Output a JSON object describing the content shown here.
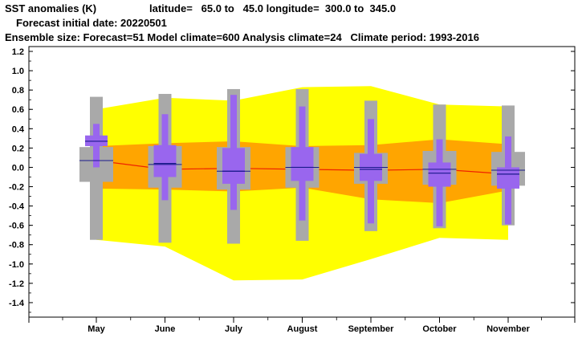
{
  "header": {
    "line1_title": "SST anomalies (K)",
    "line1_region": "latitude=   65.0 to   45.0 longitude=  300.0 to  345.0",
    "line2": "Forecast initial date: 20220501",
    "line3": "Ensemble size: Forecast=51 Model climate=600 Analysis climate=24   Climate period: 1993-2016"
  },
  "chart_data": {
    "type": "box",
    "title": "SST anomalies (K)",
    "categories": [
      "May",
      "June",
      "July",
      "August",
      "September",
      "October",
      "November"
    ],
    "ylim": [
      -1.55,
      1.25
    ],
    "yticks": [
      1.2,
      1.0,
      0.8,
      0.6,
      0.4,
      0.2,
      0.0,
      -0.2,
      -0.4,
      -0.6,
      -0.8,
      -1.0,
      -1.2,
      -1.4
    ],
    "ytick_labels": [
      "1.2",
      "1.0",
      "0.8",
      "0.6",
      "0.4",
      "0.2",
      "0.0",
      "-0.2",
      "-0.4",
      "-0.6",
      "-0.8",
      "-1.0",
      "-1.2",
      "-1.4"
    ],
    "climate_outer_band": {
      "upper": [
        0.6,
        0.72,
        0.69,
        0.83,
        0.84,
        0.65,
        0.63
      ],
      "lower": [
        -0.75,
        -0.82,
        -1.17,
        -1.16,
        -0.95,
        -0.73,
        -0.75
      ]
    },
    "climate_inner_band": {
      "upper": [
        0.22,
        0.25,
        0.27,
        0.22,
        0.23,
        0.29,
        0.24
      ],
      "lower": [
        -0.22,
        -0.23,
        -0.25,
        -0.21,
        -0.33,
        -0.37,
        -0.24
      ]
    },
    "climate_median": [
      0.07,
      -0.02,
      -0.01,
      -0.02,
      -0.03,
      -0.02,
      -0.07
    ],
    "climate_boxes": [
      {
        "whisker_low": -0.75,
        "q1": -0.15,
        "median": 0.07,
        "q3": 0.21,
        "whisker_high": 0.73
      },
      {
        "whisker_low": -0.78,
        "q1": -0.21,
        "median": 0.03,
        "q3": 0.22,
        "whisker_high": 0.76
      },
      {
        "whisker_low": -0.79,
        "q1": -0.23,
        "median": -0.04,
        "q3": 0.21,
        "whisker_high": 0.81
      },
      {
        "whisker_low": -0.76,
        "q1": -0.21,
        "median": 0.0,
        "q3": 0.21,
        "whisker_high": 0.81
      },
      {
        "whisker_low": -0.66,
        "q1": -0.17,
        "median": 0.0,
        "q3": 0.15,
        "whisker_high": 0.69
      },
      {
        "whisker_low": -0.63,
        "q1": -0.18,
        "median": -0.02,
        "q3": 0.17,
        "whisker_high": 0.65
      },
      {
        "whisker_low": -0.6,
        "q1": -0.19,
        "median": -0.03,
        "q3": 0.16,
        "whisker_high": 0.64
      }
    ],
    "forecast_boxes": [
      {
        "whisker_low": 0.0,
        "q1": 0.22,
        "median": 0.27,
        "q3": 0.33,
        "whisker_high": 0.45
      },
      {
        "whisker_low": -0.34,
        "q1": -0.1,
        "median": 0.04,
        "q3": 0.23,
        "whisker_high": 0.55
      },
      {
        "whisker_low": -0.44,
        "q1": -0.17,
        "median": -0.04,
        "q3": 0.2,
        "whisker_high": 0.75
      },
      {
        "whisker_low": -0.55,
        "q1": -0.14,
        "median": 0.0,
        "q3": 0.21,
        "whisker_high": 0.63
      },
      {
        "whisker_low": -0.58,
        "q1": -0.14,
        "median": -0.02,
        "q3": 0.14,
        "whisker_high": 0.5
      },
      {
        "whisker_low": -0.61,
        "q1": -0.2,
        "median": -0.06,
        "q3": 0.05,
        "whisker_high": 0.29
      },
      {
        "whisker_low": -0.59,
        "q1": -0.22,
        "median": -0.07,
        "q3": 0.0,
        "whisker_high": 0.32
      }
    ],
    "colors": {
      "outer_band": "#ffff00",
      "inner_band": "#ffa500",
      "climate_box": "#a9a9a9",
      "forecast_box": "#9966ee",
      "median_line": "#ee2200",
      "box_median": "#1a1a8c",
      "axis": "#000000"
    },
    "grid": false,
    "legend": "none"
  }
}
